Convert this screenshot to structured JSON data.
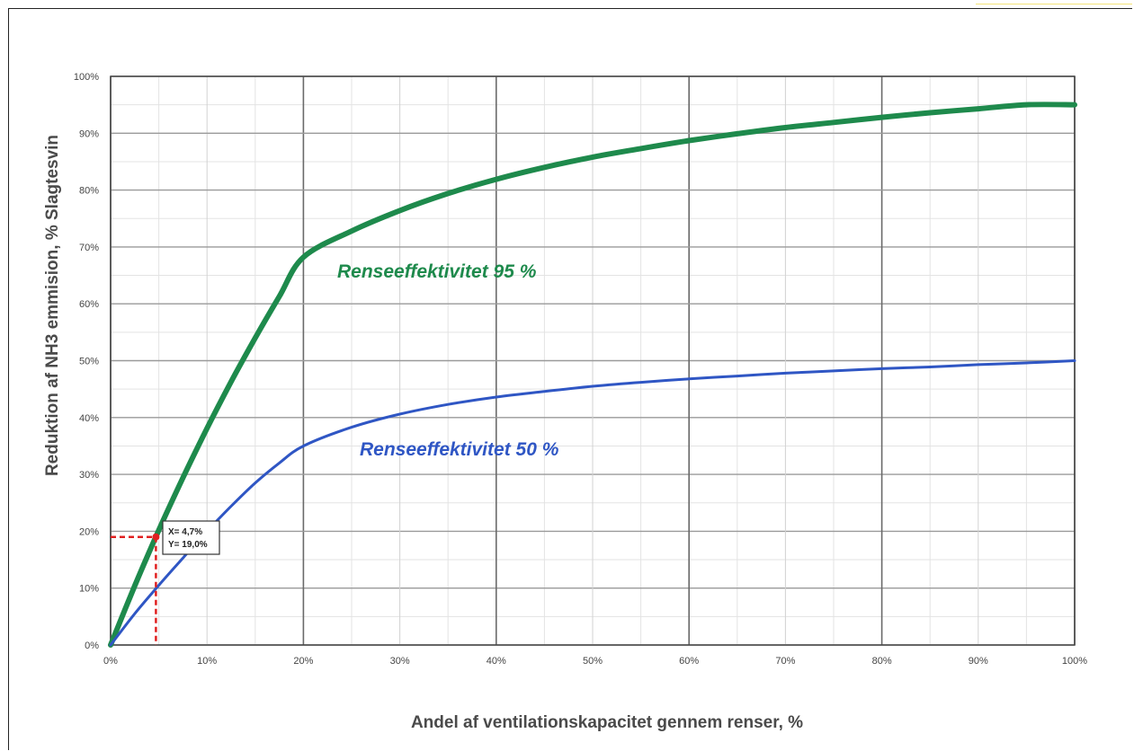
{
  "chart_data": {
    "type": "line",
    "xlabel": "Andel af ventilationskapacitet gennem renser, %",
    "ylabel": "Reduktion af NH3 emmision, % Slagtesvin",
    "xlim": [
      0,
      100
    ],
    "ylim": [
      0,
      100
    ],
    "x_ticks": [
      "0%",
      "10%",
      "20%",
      "30%",
      "40%",
      "50%",
      "60%",
      "70%",
      "80%",
      "90%",
      "100%"
    ],
    "y_ticks": [
      "0%",
      "10%",
      "20%",
      "30%",
      "40%",
      "50%",
      "60%",
      "70%",
      "80%",
      "90%",
      "100%"
    ],
    "grid": true,
    "x": [
      0,
      2.5,
      5,
      7.5,
      10,
      12.5,
      15,
      17.5,
      20,
      25,
      30,
      35,
      40,
      45,
      50,
      55,
      60,
      65,
      70,
      75,
      80,
      85,
      90,
      95,
      100
    ],
    "series": [
      {
        "name": "Renseeffektivitet 95 %",
        "color": "#1e8a4c",
        "values": [
          0,
          10.4,
          20.2,
          29.4,
          38.1,
          46.3,
          54.0,
          61.3,
          68.2,
          72.8,
          76.4,
          79.4,
          81.9,
          84.0,
          85.8,
          87.3,
          88.7,
          89.9,
          91.0,
          91.9,
          92.8,
          93.6,
          94.3,
          95.0,
          95.0
        ],
        "label": "Renseeffektivitet 95 %"
      },
      {
        "name": "Renseeffektivitet 50 %",
        "color": "#2f56c4",
        "values": [
          0,
          5.5,
          10.5,
          15.3,
          20.0,
          24.4,
          28.5,
          32.0,
          35.0,
          38.3,
          40.6,
          42.3,
          43.6,
          44.6,
          45.5,
          46.2,
          46.8,
          47.3,
          47.8,
          48.2,
          48.6,
          48.9,
          49.3,
          49.6,
          50.0
        ],
        "label": "Renseeffektivitet 50 %"
      }
    ],
    "annotation": {
      "x": 4.7,
      "y": 19.0,
      "color": "#e02020",
      "line1": "X= 4,7%",
      "line2": "Y= 19,0%"
    }
  }
}
